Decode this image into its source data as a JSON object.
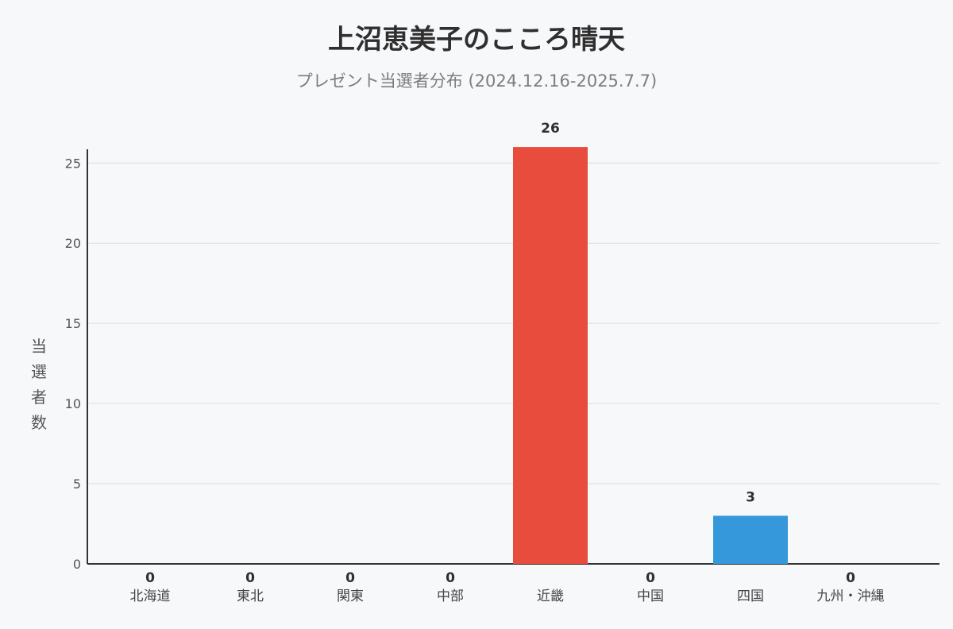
{
  "chart_data": {
    "type": "bar",
    "title": "上沼恵美子のこころ晴天",
    "subtitle": "プレゼント当選者分布 (2024.12.16-2025.7.7)",
    "xlabel": "",
    "ylabel": "当選者数",
    "categories": [
      "北海道",
      "東北",
      "関東",
      "中部",
      "近畿",
      "中国",
      "四国",
      "九州・沖縄"
    ],
    "values": [
      0,
      0,
      0,
      0,
      26,
      0,
      3,
      0
    ],
    "data_labels": [
      "0",
      "0",
      "0",
      "0",
      "26",
      "0",
      "3",
      "0"
    ],
    "ylim": [
      0,
      26.5
    ],
    "yticks": [
      0,
      5,
      10,
      15,
      20,
      25
    ],
    "grid": true,
    "bar_colors": [
      "#e74c3c",
      "#e74c3c",
      "#e74c3c",
      "#e74c3c",
      "#e74c3c",
      "#3498db",
      "#3498db",
      "#3498db"
    ],
    "axis_color": "#333333",
    "grid_color": "#dddddd"
  }
}
